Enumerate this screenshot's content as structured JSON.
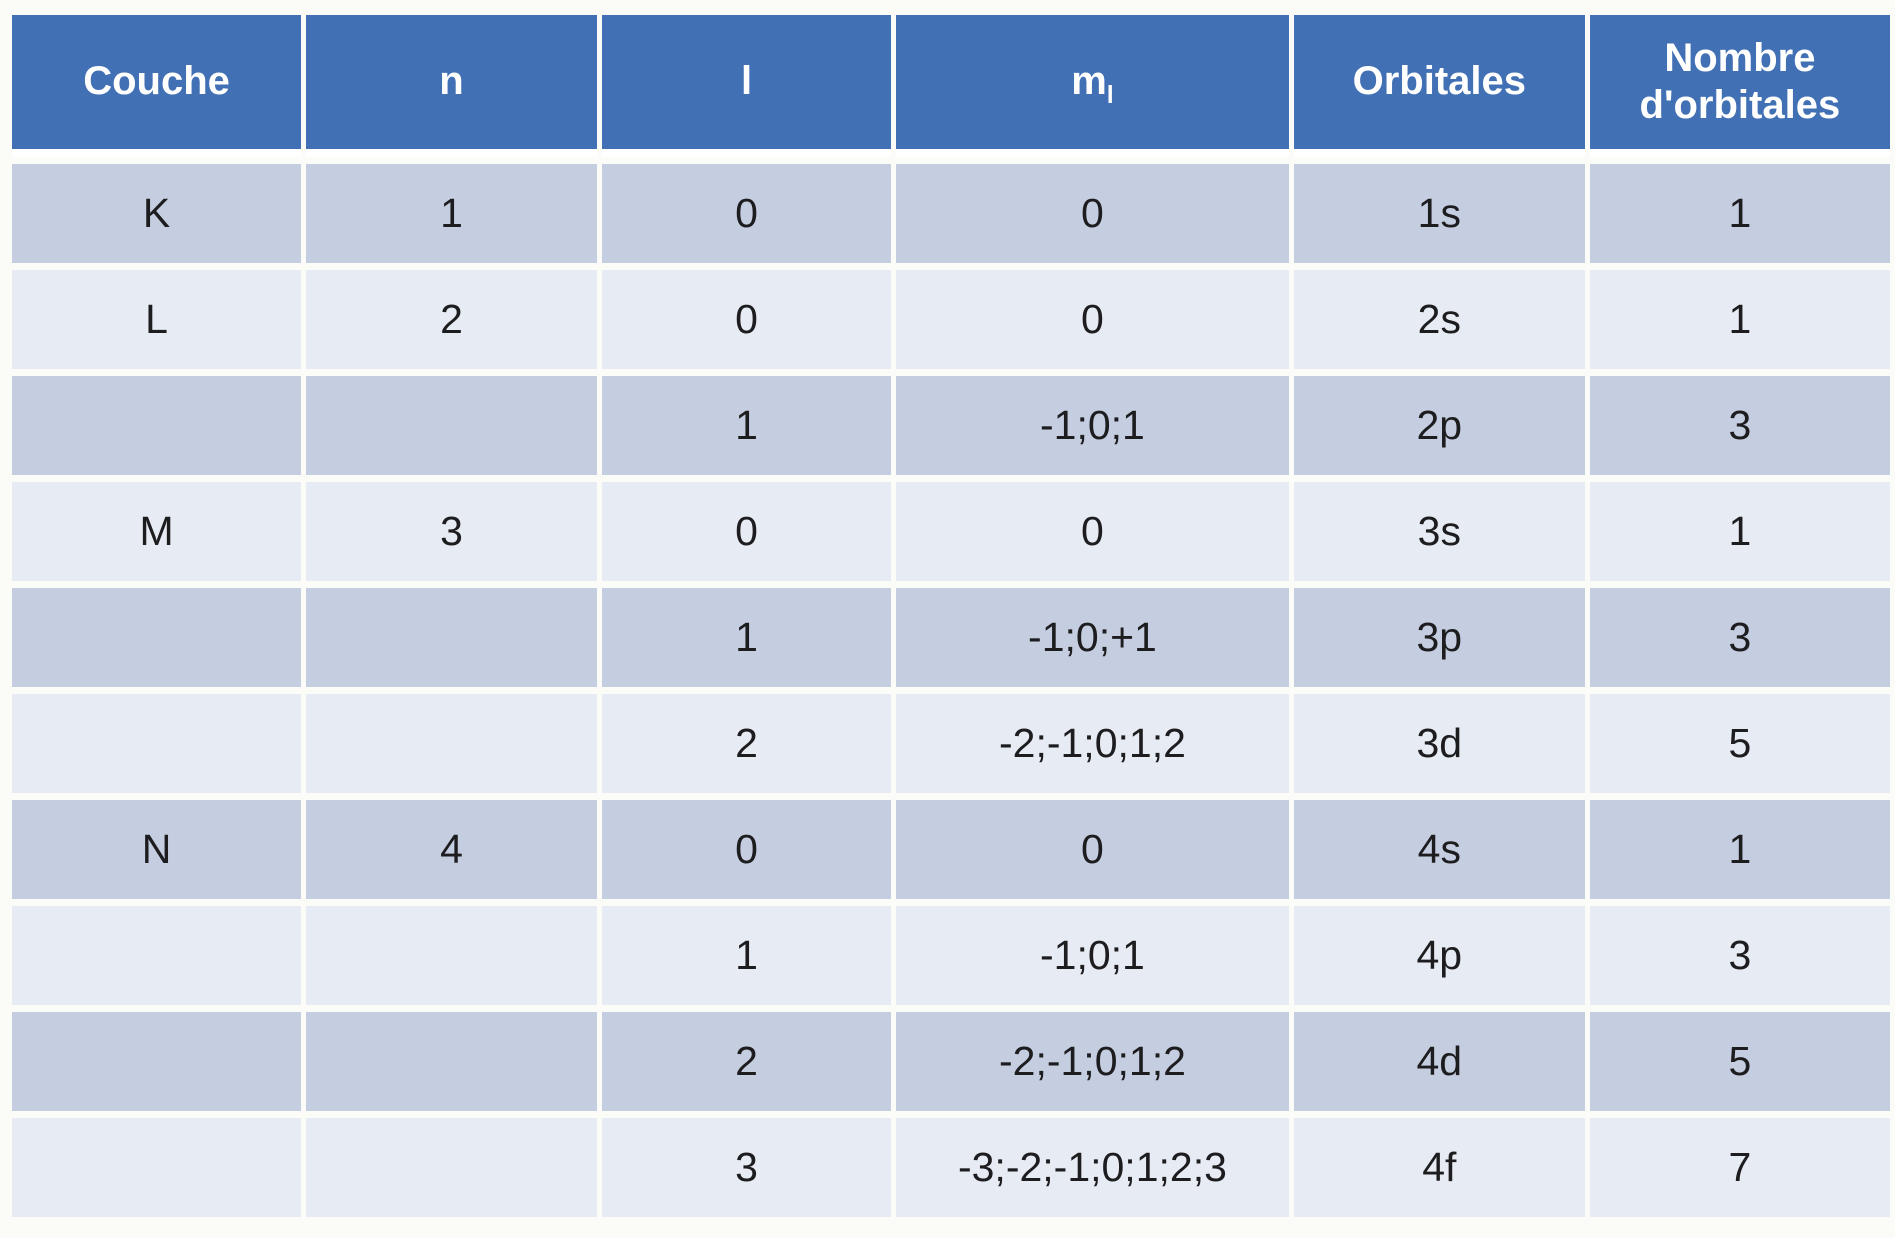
{
  "chart_data": {
    "type": "table",
    "columns": [
      {
        "key": "couche",
        "label": "Couche"
      },
      {
        "key": "n",
        "label": "n"
      },
      {
        "key": "l",
        "label": "l"
      },
      {
        "key": "ml",
        "label": "m",
        "sub": "l"
      },
      {
        "key": "orbitales",
        "label": "Orbitales"
      },
      {
        "key": "nombre",
        "label": "Nombre d'orbitales"
      }
    ],
    "rows": [
      {
        "couche": "K",
        "n": "1",
        "l": "0",
        "ml": "0",
        "orbitales": "1s",
        "nombre": "1",
        "band": "dark"
      },
      {
        "couche": "L",
        "n": "2",
        "l": "0",
        "ml": "0",
        "orbitales": "2s",
        "nombre": "1",
        "band": "light"
      },
      {
        "couche": "",
        "n": "",
        "l": "1",
        "ml": "-1;0;1",
        "orbitales": "2p",
        "nombre": "3",
        "band": "dark"
      },
      {
        "couche": "M",
        "n": "3",
        "l": "0",
        "ml": "0",
        "orbitales": "3s",
        "nombre": "1",
        "band": "light"
      },
      {
        "couche": "",
        "n": "",
        "l": "1",
        "ml": "-1;0;+1",
        "orbitales": "3p",
        "nombre": "3",
        "band": "dark"
      },
      {
        "couche": "",
        "n": "",
        "l": "2",
        "ml": "-2;-1;0;1;2",
        "orbitales": "3d",
        "nombre": "5",
        "band": "light"
      },
      {
        "couche": "N",
        "n": "4",
        "l": "0",
        "ml": "0",
        "orbitales": "4s",
        "nombre": "1",
        "band": "dark"
      },
      {
        "couche": "",
        "n": "",
        "l": "1",
        "ml": "-1;0;1",
        "orbitales": "4p",
        "nombre": "3",
        "band": "light"
      },
      {
        "couche": "",
        "n": "",
        "l": "2",
        "ml": "-2;-1;0;1;2",
        "orbitales": "4d",
        "nombre": "5",
        "band": "dark"
      },
      {
        "couche": "",
        "n": "",
        "l": "3",
        "ml": "-3;-2;-1;0;1;2;3",
        "orbitales": "4f",
        "nombre": "7",
        "band": "light"
      }
    ]
  },
  "colors": {
    "header_bg": "#4270b4",
    "header_text": "#ffffff",
    "band_dark": "#c5cde0",
    "band_light": "#e7ebf3",
    "cell_text": "#1d1d1f",
    "background": "#fbfbf7",
    "grid_gap": "#ffffff"
  }
}
